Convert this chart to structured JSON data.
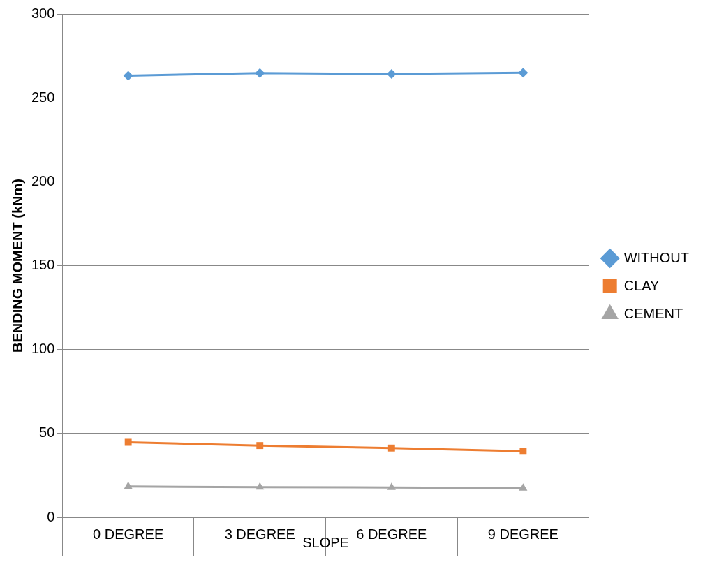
{
  "chart_data": {
    "type": "line",
    "xlabel": "SLOPE",
    "ylabel": "BENDING MOMENT (kNm)",
    "categories": [
      "0 DEGREE",
      "3 DEGREE",
      "6 DEGREE",
      "9 DEGREE"
    ],
    "series": [
      {
        "name": "WITHOUT",
        "color": "#5b9bd5",
        "marker": "diamond",
        "values": [
          263.2,
          264.7,
          264.2,
          264.9
        ]
      },
      {
        "name": "CLAY",
        "color": "#ed7d31",
        "marker": "square",
        "values": [
          44.7,
          42.8,
          41.3,
          39.4
        ]
      },
      {
        "name": "CEMENT",
        "color": "#a5a5a5",
        "marker": "triangle",
        "values": [
          18.4,
          18.0,
          17.8,
          17.4
        ]
      }
    ],
    "ylim": [
      0,
      300
    ],
    "yticks": [
      0,
      50,
      100,
      150,
      200,
      250,
      300
    ],
    "grid": "y",
    "legend": "right",
    "line_style": "solid"
  }
}
